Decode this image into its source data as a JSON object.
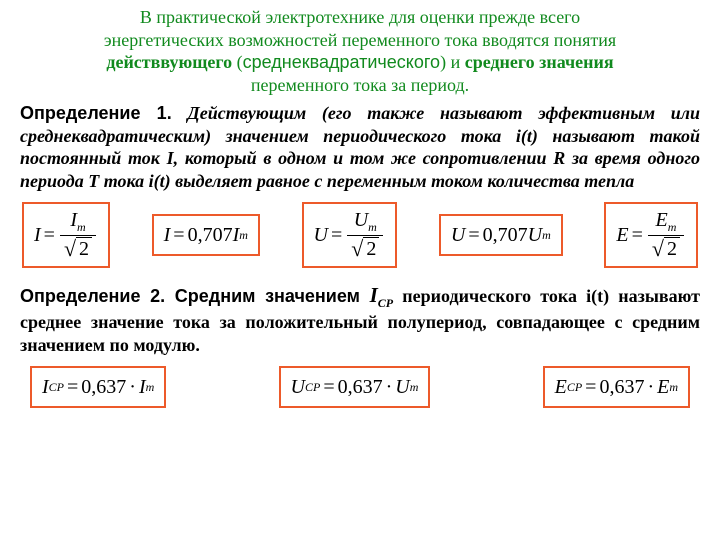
{
  "intro": {
    "line1": "В практической электротехнике для оценки прежде всего",
    "line2": "энергетических возможностей переменного тока вводятся понятия",
    "bold1": "действвующего",
    "paren_open": " (",
    "rms_word": "среднеквадратического",
    "paren_close": ") ",
    "and_word": "и ",
    "bold2": "среднего значения",
    "line4": "переменного тока за период."
  },
  "def1": {
    "head": "Определение 1.",
    "body": " Действующим (его также называют эффективным или среднеквадратическим) значением периодического тока i(t) называют такой постоянный ток I, который в одном и том же сопротивлении R за время одного периода T тока i(t)  выделяет равное с переменным током количества тепла"
  },
  "def2": {
    "head": "Определение 2.",
    "sans_lead": " Средним значением ",
    "Icp": "I",
    "Icp_sub": "СР",
    "body": " периодического тока i(t) называют среднее значение тока за положительный  полупериод, совпадающее с средним значением по модулю."
  },
  "formulas": {
    "row1": {
      "f1": {
        "lhs": "I"
      },
      "f2": {
        "lhs": "I",
        "coef": "0,707",
        "rhs": "I",
        "sub": "m"
      },
      "f3": {
        "lhs": "U"
      },
      "f4": {
        "lhs": "U",
        "coef": "0,707",
        "rhs": "U",
        "sub": "m"
      },
      "f5": {
        "lhs": "E"
      }
    },
    "row2": {
      "f1": {
        "lhs": "I",
        "lsub": "СР",
        "coef": "0,637",
        "rhs": "I",
        "sub": "m"
      },
      "f2": {
        "lhs": "U",
        "lsub": "СР",
        "coef": "0,637",
        "rhs": "U",
        "sub": "m"
      },
      "f3": {
        "lhs": "E",
        "lsub": "СР",
        "coef": "0,637",
        "rhs": "E",
        "sub": "m"
      }
    }
  },
  "style": {
    "accent_green": "#118a1e",
    "box_border": "#ed5a2a",
    "text_color": "#000000",
    "bg_color": "#ffffff",
    "intro_fontsize": 18,
    "def_fontsize": 18,
    "eq_fontsize": 20,
    "box_border_width": 2.5
  }
}
